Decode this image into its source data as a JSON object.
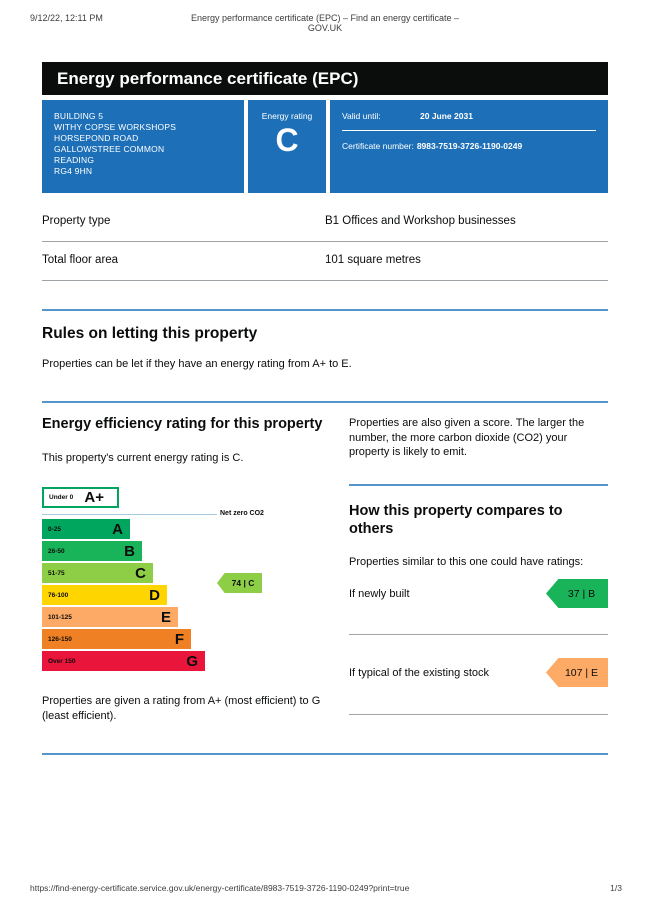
{
  "print_header": {
    "datetime": "9/12/22, 12:11 PM",
    "title": "Energy performance certificate (EPC) – Find an energy certificate – GOV.UK"
  },
  "banner": {
    "title": "Energy performance certificate (EPC)"
  },
  "summary_box": {
    "brand_color": "#1d70b8",
    "address_lines": [
      "BUILDING 5",
      "WITHY COPSE WORKSHOPS",
      "HORSEPOND ROAD",
      "GALLOWSTREE COMMON",
      "READING",
      "RG4 9HN"
    ],
    "energy_rating_label": "Energy rating",
    "energy_rating": "C",
    "valid_until_label": "Valid until:",
    "valid_until": "20 June 2031",
    "certificate_number_label": "Certificate number:",
    "certificate_number": "8983-7519-3726-1190-0249"
  },
  "property_details": {
    "rows": [
      {
        "label": "Property type",
        "value": "B1 Offices and Workshop businesses"
      },
      {
        "label": "Total floor area",
        "value": "101 square metres"
      }
    ]
  },
  "rules_section": {
    "heading": "Rules on letting this property",
    "body": "Properties can be let if they have an energy rating from A+ to E."
  },
  "efficiency_section": {
    "heading": "Energy efficiency rating for this property",
    "current_rating_text": "This property's current energy rating is C.",
    "footnote": "Properties are given a rating from A+ (most efficient) to G (least efficient)."
  },
  "score_note": "Properties are also given a score. The larger the number, the more carbon dioxide (CO2) your property is likely to emit.",
  "compare_section": {
    "heading": "How this property compares to others",
    "intro": "Properties similar to this one could have ratings:",
    "rows": [
      {
        "label": "If newly built",
        "value": "37 | B",
        "color": "#19b459"
      },
      {
        "label": "If typical of the existing stock",
        "value": "107 | E",
        "color": "#fcaa65"
      }
    ]
  },
  "chart_data": {
    "type": "bar",
    "title": "Energy efficiency rating for this property",
    "net_zero_label": "Net zero CO2",
    "bands": [
      {
        "grade": "A+",
        "range": "Under 0",
        "color": "#ffffff",
        "border": "#00a65d"
      },
      {
        "grade": "A",
        "range": "0-25",
        "color": "#00a65d"
      },
      {
        "grade": "B",
        "range": "26-50",
        "color": "#19b459"
      },
      {
        "grade": "C",
        "range": "51-75",
        "color": "#8dce46"
      },
      {
        "grade": "D",
        "range": "76-100",
        "color": "#ffd500"
      },
      {
        "grade": "E",
        "range": "101-125",
        "color": "#fcaa65"
      },
      {
        "grade": "F",
        "range": "126-150",
        "color": "#ef8023"
      },
      {
        "grade": "G",
        "range": "Over 150",
        "color": "#e9153b"
      }
    ],
    "current": {
      "score": 74,
      "grade": "C",
      "label": "74 | C",
      "color": "#8dce46"
    },
    "comparisons": [
      {
        "label": "If newly built",
        "score": 37,
        "grade": "B"
      },
      {
        "label": "If typical of the existing stock",
        "score": 107,
        "grade": "E"
      }
    ]
  },
  "footer": {
    "url": "https://find-energy-certificate.service.gov.uk/energy-certificate/8983-7519-3726-1190-0249?print=true",
    "page": "1/3"
  }
}
